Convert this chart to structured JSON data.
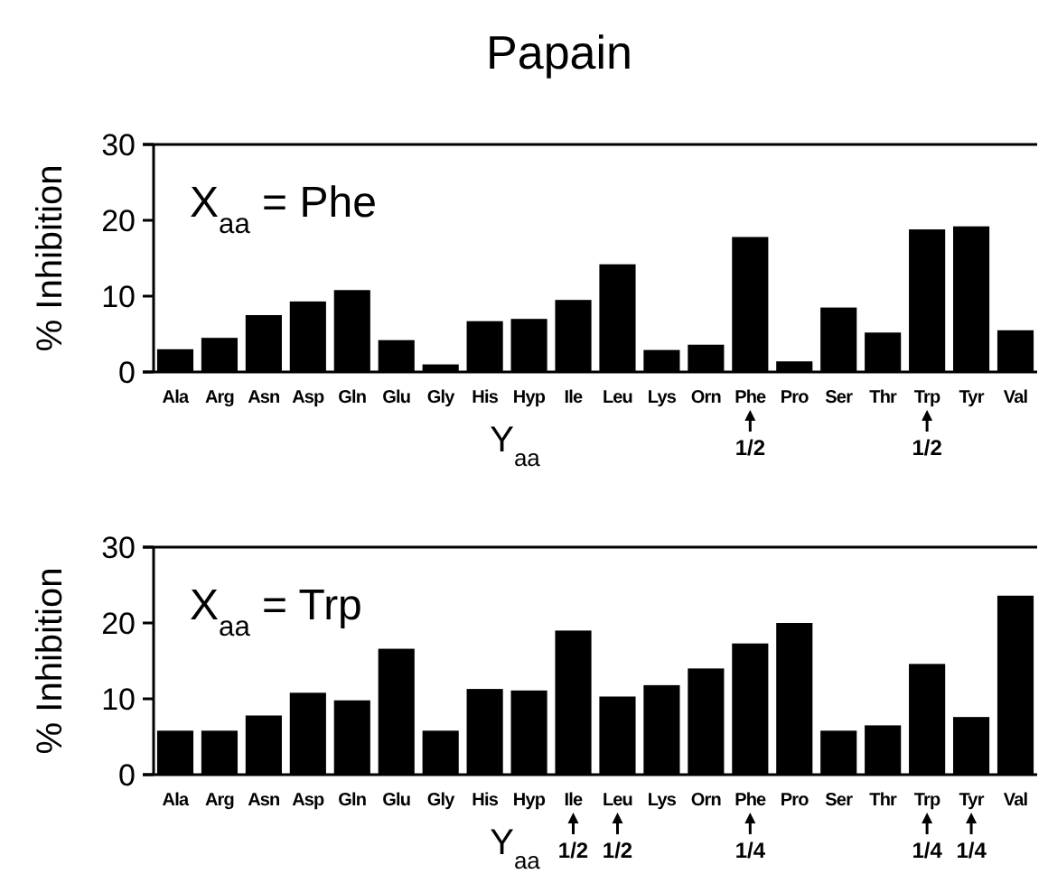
{
  "chart_data": [
    {
      "type": "bar",
      "title": "Papain",
      "ylabel": "% Inhibition",
      "xlabel": "Y$_{aa}$",
      "color": "#000000",
      "ylim": [
        0,
        30
      ],
      "yticks": [
        0,
        10,
        20,
        30
      ],
      "categories": [
        "Ala",
        "Arg",
        "Asn",
        "Asp",
        "Gln",
        "Glu",
        "Gly",
        "His",
        "Hyp",
        "Ile",
        "Leu",
        "Lys",
        "Orn",
        "Phe",
        "Pro",
        "Ser",
        "Thr",
        "Trp",
        "Tyr",
        "Val"
      ],
      "values": [
        3,
        4.5,
        7.5,
        9.3,
        10.8,
        4.2,
        1,
        6.7,
        7,
        9.5,
        14.2,
        2.9,
        3.6,
        17.8,
        1.4,
        8.5,
        5.2,
        18.8,
        19.2,
        5.5
      ],
      "annotations": [
        "X$_{aa}$ = Phe",
        {
          "text": "1/2",
          "x": "Phe"
        },
        {
          "text": "1/2",
          "x": "Trp"
        }
      ]
    },
    {
      "type": "bar",
      "ylabel": "% Inhibition",
      "xlabel": "Y$_{aa}$",
      "color": "#000000",
      "ylim": [
        0,
        30
      ],
      "yticks": [
        0,
        10,
        20,
        30
      ],
      "categories": [
        "Ala",
        "Arg",
        "Asn",
        "Asp",
        "Gln",
        "Glu",
        "Gly",
        "His",
        "Hyp",
        "Ile",
        "Leu",
        "Lys",
        "Orn",
        "Phe",
        "Pro",
        "Ser",
        "Thr",
        "Trp",
        "Tyr",
        "Val"
      ],
      "values": [
        5.8,
        5.8,
        7.8,
        10.8,
        9.8,
        16.6,
        5.8,
        11.3,
        11.1,
        19,
        10.3,
        11.8,
        14,
        17.3,
        20,
        5.8,
        6.5,
        14.6,
        7.6,
        23.6
      ],
      "annotations": [
        "X$_{aa}$ = Trp",
        {
          "text": "1/2",
          "x": "Ile"
        },
        {
          "text": "1/2",
          "x": "Leu"
        },
        {
          "text": "1/4",
          "x": "Phe"
        },
        {
          "text": "1/4",
          "x": "Trp"
        },
        {
          "text": "1/4",
          "x": "Tyr"
        }
      ]
    }
  ]
}
